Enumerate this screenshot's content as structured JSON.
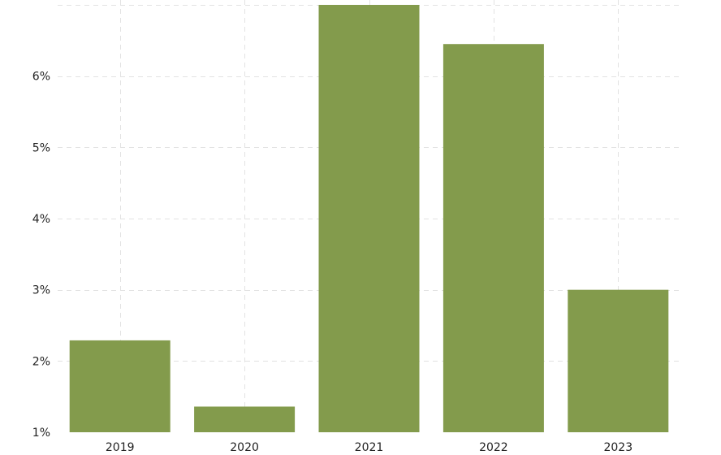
{
  "chart_data": {
    "type": "bar",
    "categories": [
      "2019",
      "2020",
      "2021",
      "2022",
      "2023"
    ],
    "values": [
      2.29,
      1.36,
      7.0,
      6.45,
      3.0
    ],
    "y_tick_labels": [
      "1%",
      "2%",
      "3%",
      "4%",
      "5%",
      "6%"
    ],
    "y_ticks": [
      1,
      2,
      3,
      4,
      5,
      6
    ],
    "ylim": [
      1,
      7
    ],
    "grid": true,
    "bar_color": "#839b4c"
  }
}
